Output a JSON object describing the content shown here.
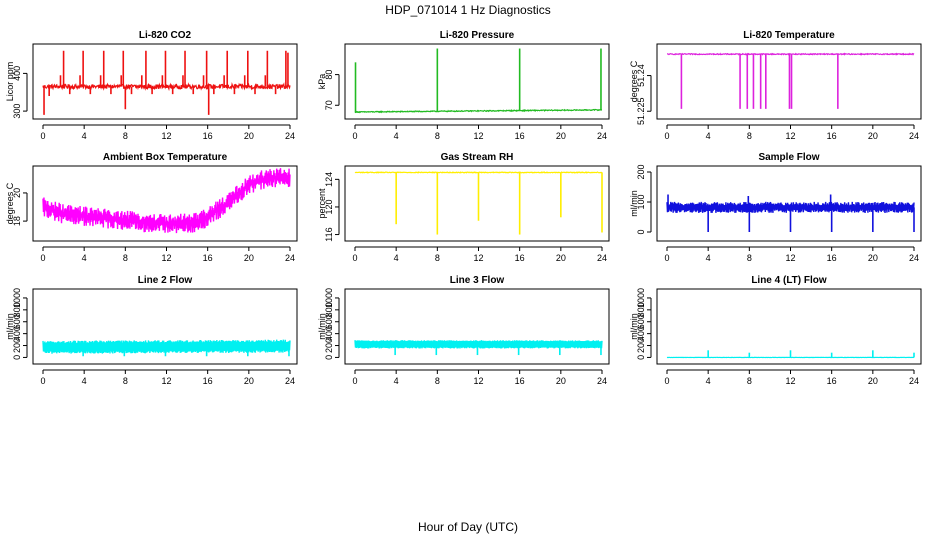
{
  "figure": {
    "title": "HDP_071014  1 Hz Diagnostics",
    "xlabel": "Hour of Day (UTC)"
  },
  "chart_data": [
    {
      "type": "line",
      "title": "Li-820 CO2",
      "ylabel": "Licor ppm",
      "color": "#ee1111",
      "xlim": [
        0,
        24
      ],
      "ylim": [
        287,
        470
      ],
      "xticks": [
        0,
        4,
        8,
        12,
        16,
        20,
        24
      ],
      "yticks": [
        300,
        400
      ],
      "baseline": 365,
      "noise": 6,
      "band": 0,
      "drift": [],
      "spikes": [
        [
          0.1,
          290
        ],
        [
          2.0,
          460
        ],
        [
          3.9,
          460
        ],
        [
          5.9,
          460
        ],
        [
          7.8,
          460
        ],
        [
          8.0,
          305
        ],
        [
          10.0,
          460
        ],
        [
          11.9,
          460
        ],
        [
          13.8,
          460
        ],
        [
          15.9,
          460
        ],
        [
          16.1,
          290
        ],
        [
          17.9,
          460
        ],
        [
          19.9,
          460
        ],
        [
          21.8,
          460
        ],
        [
          23.6,
          460
        ],
        [
          23.8,
          455
        ]
      ],
      "dips": [
        [
          1.7,
          395
        ],
        [
          3.6,
          395
        ],
        [
          5.6,
          395
        ],
        [
          7.6,
          395
        ],
        [
          9.6,
          395
        ],
        [
          11.6,
          395
        ],
        [
          13.6,
          395
        ],
        [
          15.6,
          395
        ],
        [
          17.6,
          395
        ],
        [
          19.6,
          395
        ],
        [
          21.6,
          395
        ],
        [
          0.6,
          340
        ],
        [
          2.6,
          345
        ],
        [
          4.6,
          345
        ],
        [
          6.6,
          345
        ],
        [
          8.6,
          345
        ],
        [
          10.6,
          345
        ],
        [
          12.6,
          345
        ],
        [
          14.6,
          345
        ],
        [
          16.6,
          345
        ],
        [
          18.6,
          345
        ],
        [
          20.6,
          345
        ],
        [
          22.6,
          345
        ]
      ]
    },
    {
      "type": "line",
      "title": "Li-820 Pressure",
      "ylabel": "kPa",
      "color": "#22bb22",
      "xlim": [
        0,
        24
      ],
      "ylim": [
        66.5,
        89
      ],
      "xticks": [
        0,
        4,
        8,
        12,
        16,
        20,
        24
      ],
      "yticks": [
        70,
        80
      ],
      "baseline": 67.9,
      "noise": 0.15,
      "band": 0,
      "drift": [
        [
          0,
          67.8
        ],
        [
          24,
          68.5
        ]
      ],
      "spikes": [
        [
          0.05,
          84
        ],
        [
          8.0,
          88.5
        ],
        [
          16.0,
          88.5
        ],
        [
          23.9,
          88.5
        ]
      ],
      "dips": []
    },
    {
      "type": "line",
      "title": "Li-820 Temperature",
      "ylabel": "degrees C",
      "color": "#dd22dd",
      "xlim": [
        0,
        24
      ],
      "ylim": [
        51.223,
        51.252
      ],
      "xticks": [
        0,
        4,
        8,
        12,
        16,
        20,
        24
      ],
      "yticks": [
        51.225,
        51.24
      ],
      "baseline": 51.249,
      "noise": 0.0002,
      "band": 0,
      "drift": [],
      "spikes": [
        [
          1.4,
          51.226
        ],
        [
          7.1,
          51.226
        ],
        [
          7.8,
          51.226
        ],
        [
          8.4,
          51.226
        ],
        [
          9.1,
          51.226
        ],
        [
          9.6,
          51.226
        ],
        [
          11.9,
          51.226
        ],
        [
          12.1,
          51.226
        ],
        [
          16.6,
          51.226
        ]
      ],
      "dips": []
    },
    {
      "type": "line",
      "title": "Ambient Box Temperature",
      "ylabel": "degrees C",
      "color": "#ff00ff",
      "xlim": [
        0,
        24
      ],
      "ylim": [
        16.8,
        21.7
      ],
      "xticks": [
        0,
        4,
        8,
        12,
        16,
        20,
        24
      ],
      "yticks": [
        18,
        20
      ],
      "baseline": 18,
      "noise": 0.3,
      "band": 0.8,
      "drift": [
        [
          0,
          19.0
        ],
        [
          2,
          18.5
        ],
        [
          6,
          18.2
        ],
        [
          10,
          17.9
        ],
        [
          13,
          17.8
        ],
        [
          15,
          17.9
        ],
        [
          16,
          18.3
        ],
        [
          18,
          19.3
        ],
        [
          20,
          20.6
        ],
        [
          22,
          21.1
        ],
        [
          24,
          21.1
        ]
      ],
      "spikes": [],
      "dips": []
    },
    {
      "type": "line",
      "title": "Gas Stream RH",
      "ylabel": "percent",
      "color": "#ffee00",
      "xlim": [
        0,
        24
      ],
      "ylim": [
        115.5,
        125.5
      ],
      "xticks": [
        0,
        4,
        8,
        12,
        16,
        20,
        24
      ],
      "yticks": [
        116,
        120,
        124
      ],
      "baseline": 125.0,
      "noise": 0.05,
      "band": 0,
      "drift": [],
      "spikes": [
        [
          4.0,
          117.5
        ],
        [
          8.0,
          116.0
        ],
        [
          12.0,
          118.0
        ],
        [
          16.0,
          116.0
        ],
        [
          20.0,
          118.5
        ],
        [
          24.0,
          116.3
        ]
      ],
      "dips": []
    },
    {
      "type": "line",
      "title": "Sample Flow",
      "ylabel": "ml/min",
      "color": "#1111dd",
      "xlim": [
        0,
        24
      ],
      "ylim": [
        -20,
        210
      ],
      "xticks": [
        0,
        4,
        8,
        12,
        16,
        20,
        24
      ],
      "yticks": [
        0,
        100,
        200
      ],
      "baseline": 82,
      "noise": 6,
      "band": 25,
      "drift": [],
      "spikes": [
        [
          0.1,
          125
        ],
        [
          4.0,
          0
        ],
        [
          7.9,
          120
        ],
        [
          8.0,
          0
        ],
        [
          12.0,
          0
        ],
        [
          15.9,
          125
        ],
        [
          16.0,
          0
        ],
        [
          20.0,
          0
        ],
        [
          24.0,
          0
        ]
      ],
      "dips": []
    },
    {
      "type": "line",
      "title": "Line 2 Flow",
      "ylabel": "ml/min",
      "color": "#00f0f0",
      "xlim": [
        0,
        24
      ],
      "ylim": [
        -60,
        1100
      ],
      "xticks": [
        0,
        4,
        8,
        12,
        16,
        20,
        24
      ],
      "yticks": [
        0,
        200,
        400,
        600,
        800,
        1000
      ],
      "baseline": 180,
      "noise": 20,
      "band": 180,
      "drift": [
        [
          0,
          170
        ],
        [
          24,
          190
        ]
      ],
      "spikes": [],
      "dips": [
        [
          3.9,
          20
        ],
        [
          7.9,
          20
        ],
        [
          11.9,
          20
        ],
        [
          15.9,
          20
        ],
        [
          19.9,
          20
        ],
        [
          23.9,
          20
        ]
      ]
    },
    {
      "type": "line",
      "title": "Line 3 Flow",
      "ylabel": "ml/min",
      "color": "#00f0f0",
      "xlim": [
        0,
        24
      ],
      "ylim": [
        -60,
        1100
      ],
      "xticks": [
        0,
        4,
        8,
        12,
        16,
        20,
        24
      ],
      "yticks": [
        0,
        200,
        400,
        600,
        800,
        1000
      ],
      "baseline": 220,
      "noise": 10,
      "band": 120,
      "drift": [],
      "spikes": [],
      "dips": [
        [
          3.9,
          40
        ],
        [
          7.9,
          40
        ],
        [
          11.9,
          40
        ],
        [
          15.9,
          40
        ],
        [
          19.9,
          40
        ],
        [
          23.9,
          40
        ]
      ]
    },
    {
      "type": "line",
      "title": "Line 4 (LT) Flow",
      "ylabel": "ml/min",
      "color": "#00f0f0",
      "xlim": [
        0,
        24
      ],
      "ylim": [
        -60,
        1100
      ],
      "xticks": [
        0,
        4,
        8,
        12,
        16,
        20,
        24
      ],
      "yticks": [
        0,
        200,
        400,
        600,
        800,
        1000
      ],
      "baseline": 0,
      "noise": 2,
      "band": 0,
      "drift": [],
      "spikes": [
        [
          4.0,
          120
        ],
        [
          8.0,
          80
        ],
        [
          12.0,
          120
        ],
        [
          16.0,
          80
        ],
        [
          20.0,
          120
        ],
        [
          24.0,
          80
        ]
      ],
      "dips": []
    }
  ]
}
